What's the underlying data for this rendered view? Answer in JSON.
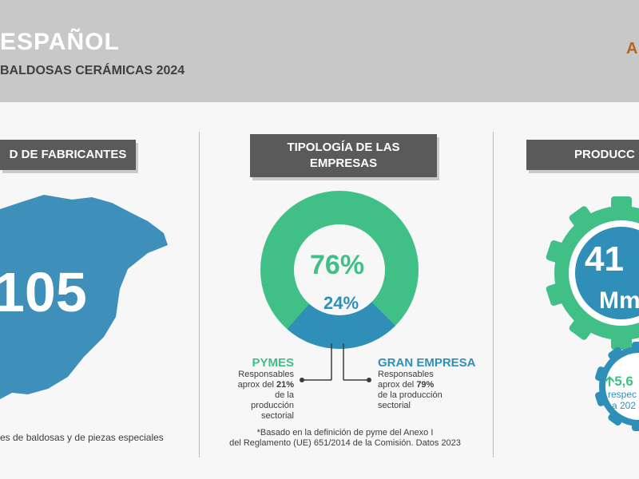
{
  "header": {
    "title": "ESPAÑOL",
    "subtitle": "BALDOSAS CERÁMICAS 2024",
    "logo_text": "A",
    "colors": {
      "band": "#c8c8c8",
      "logo": "#b5651d"
    }
  },
  "fabricantes": {
    "label": "D DE FABRICANTES",
    "number": "105",
    "caption": "es de baldosas y de piezas especiales",
    "map_color": "#3e8fba",
    "map_icon": "spain-map"
  },
  "tipologia": {
    "label_line1": "TIPOLOGÍA DE LAS",
    "label_line2": "EMPRESAS",
    "pymes_percent": "76%",
    "gran_percent": "24%",
    "pymes_share": 76,
    "gran_share": 24,
    "pymes_title": "PYMES",
    "pymes_desc_1": "Responsables",
    "pymes_desc_2a": "aprox del ",
    "pymes_desc_2b": "21%",
    "pymes_desc_3": "de la producción",
    "pymes_desc_4": "sectorial",
    "gran_title": "GRAN EMPRESA",
    "gran_desc_1": "Responsables",
    "gran_desc_2a": "aprox del ",
    "gran_desc_2b": "79%",
    "gran_desc_3": "de la producción",
    "gran_desc_4": "sectorial",
    "note_1": "*Basado en la definición de pyme del Anexo I",
    "note_2": "del Reglamento (UE) 651/2014 de la Comisión. Datos 2023",
    "colors": {
      "pymes": "#40bf87",
      "gran": "#2f8fb8"
    }
  },
  "produccion": {
    "label": "PRODUCC",
    "value": "41",
    "unit": "Mm",
    "change": "5,6",
    "change_line2": "respec",
    "change_line3": "a 202",
    "arrow_icon": "arrow-up-icon",
    "gear_icon": "gear-icon",
    "colors": {
      "gear_big": "#40bf87",
      "inner": "#2f8fb8",
      "gear_small": "#2f8fb8"
    }
  }
}
